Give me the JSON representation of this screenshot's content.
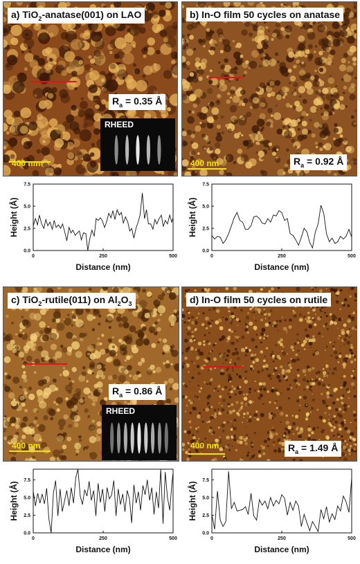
{
  "panels": [
    {
      "id": "a",
      "title_pre": "a) TiO",
      "title_sub": "2",
      "title_post": "-anatase(001) on LAO",
      "ra_pre": "R",
      "ra_sub": "a",
      "ra_post": " = 0.35 Å",
      "scale": "400 nm",
      "rheed": "RHEED",
      "base_color": "#8b4a1c",
      "light_color": "#e8b45a",
      "dark_color": "#3a1806"
    },
    {
      "id": "b",
      "title_pre": "b) In-O film 50 cycles on anatase",
      "title_sub": "",
      "title_post": "",
      "ra_pre": "R",
      "ra_sub": "a",
      "ra_post": " = 0.92 Å",
      "scale": "400 nm",
      "rheed": "",
      "base_color": "#8e5322",
      "light_color": "#f0c46a",
      "dark_color": "#3e1c08"
    },
    {
      "id": "c",
      "title_pre": "c) TiO",
      "title_sub": "2",
      "title_post": "-rutile(011) on Al",
      "title_sub2": "2",
      "title_post2": "O",
      "title_sub3": "3",
      "ra_pre": "R",
      "ra_sub": "a",
      "ra_post": " = 0.86 Å",
      "scale": "400 nm",
      "rheed": "RHEED",
      "base_color": "#a0682a",
      "light_color": "#f2cf7a",
      "dark_color": "#4a2508"
    },
    {
      "id": "d",
      "title_pre": "d) In-O film 50 cycles on rutile",
      "title_sub": "",
      "title_post": "",
      "ra_pre": "R",
      "ra_sub": "a",
      "ra_post": " = 1.49 Å",
      "scale": "400 nm",
      "rheed": "",
      "base_color": "#8a4e1c",
      "light_color": "#f3cc70",
      "dark_color": "#351604"
    }
  ],
  "chart_data": [
    {
      "type": "line",
      "panel": "a",
      "xlabel": "Distance (nm)",
      "ylabel": "Height (Å)",
      "xlim": [
        0,
        500
      ],
      "ylim": [
        0,
        7.5
      ],
      "xticks": [
        "0",
        "250",
        "500"
      ],
      "yticks": [
        "0.0",
        "2.5",
        "5.0",
        "7.5"
      ],
      "x": [
        0,
        8,
        15,
        22,
        30,
        38,
        45,
        52,
        60,
        68,
        75,
        82,
        90,
        98,
        105,
        112,
        120,
        128,
        135,
        142,
        150,
        158,
        165,
        172,
        180,
        188,
        195,
        202,
        210,
        218,
        225,
        232,
        240,
        248,
        255,
        262,
        270,
        278,
        285,
        292,
        300,
        308,
        315,
        322,
        330,
        338,
        345,
        352,
        360,
        368,
        375,
        382,
        390,
        398,
        405,
        412,
        420,
        428,
        435,
        442,
        450,
        458,
        465,
        472,
        480,
        488,
        495,
        500
      ],
      "y": [
        2.8,
        3.6,
        2.9,
        4.0,
        3.0,
        2.5,
        3.5,
        2.8,
        3.2,
        2.4,
        3.4,
        2.6,
        2.9,
        2.5,
        3.0,
        2.2,
        1.1,
        2.6,
        2.0,
        2.3,
        1.7,
        2.0,
        2.2,
        1.2,
        2.0,
        1.9,
        0.0,
        1.3,
        2.3,
        1.6,
        3.6,
        3.4,
        3.7,
        3.3,
        2.6,
        3.2,
        4.2,
        3.7,
        4.5,
        3.5,
        4.6,
        4.0,
        4.3,
        3.1,
        3.8,
        3.2,
        2.2,
        2.5,
        1.4,
        2.6,
        3.2,
        4.0,
        6.5,
        3.6,
        4.6,
        3.0,
        3.0,
        2.4,
        3.5,
        3.0,
        3.6,
        4.0,
        2.7,
        3.4,
        3.0,
        4.0,
        3.2,
        3.7
      ]
    },
    {
      "type": "line",
      "panel": "b",
      "xlabel": "Distance (nm)",
      "ylabel": "Height (Å)",
      "xlim": [
        0,
        500
      ],
      "ylim": [
        0,
        7.5
      ],
      "xticks": [
        "0",
        "250",
        "500"
      ],
      "yticks": [
        "0.0",
        "2.5",
        "5.0",
        "7.5"
      ],
      "x": [
        0,
        10,
        20,
        30,
        40,
        50,
        60,
        70,
        80,
        90,
        100,
        110,
        120,
        130,
        140,
        150,
        160,
        170,
        180,
        190,
        200,
        210,
        220,
        230,
        240,
        250,
        260,
        270,
        280,
        290,
        300,
        310,
        320,
        330,
        340,
        350,
        360,
        370,
        380,
        390,
        400,
        410,
        420,
        430,
        440,
        450,
        460,
        470,
        480,
        490,
        500
      ],
      "y": [
        1.7,
        1.3,
        1.6,
        1.5,
        0.8,
        1.2,
        1.9,
        2.8,
        3.7,
        4.3,
        3.4,
        3.2,
        2.4,
        2.4,
        2.8,
        3.8,
        3.9,
        3.6,
        3.1,
        3.0,
        3.6,
        3.2,
        4.0,
        3.9,
        4.5,
        4.3,
        3.4,
        3.6,
        1.9,
        1.7,
        1.2,
        0.6,
        1.5,
        2.5,
        2.1,
        0.9,
        0.3,
        2.1,
        3.0,
        5.1,
        4.2,
        1.9,
        1.0,
        1.4,
        0.8,
        1.0,
        1.6,
        1.3,
        1.6,
        2.4,
        1.5
      ]
    },
    {
      "type": "line",
      "panel": "c",
      "xlabel": "Distance (nm)",
      "ylabel": "Height (Å)",
      "xlim": [
        0,
        500
      ],
      "ylim": [
        0,
        9
      ],
      "xticks": [
        "0",
        "250",
        "500"
      ],
      "yticks": [
        "0.0",
        "2.5",
        "5.0",
        "7.5"
      ],
      "x": [
        0,
        8,
        16,
        24,
        32,
        40,
        48,
        56,
        64,
        72,
        80,
        88,
        96,
        104,
        112,
        120,
        128,
        136,
        144,
        152,
        160,
        168,
        176,
        184,
        192,
        200,
        208,
        216,
        224,
        232,
        240,
        248,
        256,
        264,
        272,
        280,
        288,
        296,
        304,
        312,
        320,
        328,
        336,
        344,
        352,
        360,
        368,
        376,
        384,
        392,
        400,
        408,
        416,
        424,
        432,
        440,
        448,
        456,
        464,
        472,
        480,
        488,
        496,
        500
      ],
      "y": [
        5.9,
        3.8,
        5.6,
        4.2,
        5.5,
        4.1,
        6.3,
        2.0,
        0.0,
        5.6,
        7.4,
        2.4,
        6.2,
        3.0,
        4.5,
        6.0,
        3.8,
        6.4,
        4.2,
        7.8,
        9.2,
        5.2,
        4.0,
        6.1,
        5.2,
        7.3,
        4.6,
        6.0,
        2.4,
        7.0,
        4.3,
        6.2,
        3.0,
        6.4,
        4.8,
        5.3,
        7.4,
        2.4,
        6.2,
        4.0,
        5.5,
        3.0,
        6.0,
        4.8,
        1.4,
        6.8,
        4.2,
        5.8,
        3.2,
        6.7,
        5.4,
        7.5,
        4.6,
        6.4,
        2.6,
        5.8,
        3.5,
        9.2,
        1.3,
        8.6,
        5.0,
        3.2,
        7.1,
        8.5
      ]
    },
    {
      "type": "line",
      "panel": "d",
      "xlabel": "Distance (nm)",
      "ylabel": "Height (Å)",
      "xlim": [
        0,
        500
      ],
      "ylim": [
        0,
        9
      ],
      "xticks": [
        "0",
        "250",
        "500"
      ],
      "yticks": [
        "0.0",
        "2.5",
        "5.0",
        "7.5"
      ],
      "x": [
        0,
        10,
        20,
        30,
        40,
        50,
        60,
        70,
        80,
        90,
        100,
        110,
        120,
        130,
        140,
        150,
        160,
        170,
        180,
        190,
        200,
        210,
        220,
        230,
        240,
        250,
        260,
        270,
        280,
        290,
        300,
        310,
        320,
        330,
        340,
        350,
        360,
        370,
        380,
        390,
        400,
        410,
        420,
        430,
        440,
        450,
        460,
        470,
        480,
        490,
        500
      ],
      "y": [
        2.6,
        0.5,
        5.9,
        1.8,
        0.9,
        1.6,
        8.7,
        3.4,
        4.3,
        3.1,
        3.2,
        3.3,
        3.7,
        2.6,
        5.6,
        2.4,
        1.8,
        4.7,
        3.9,
        4.5,
        3.4,
        5.0,
        3.8,
        4.6,
        4.1,
        5.4,
        4.9,
        2.5,
        4.3,
        3.2,
        4.5,
        3.8,
        0.9,
        2.6,
        1.4,
        0.3,
        1.6,
        0.9,
        0.2,
        3.3,
        2.0,
        3.7,
        1.5,
        2.7,
        1.9,
        3.8,
        3.1,
        5.2,
        4.4,
        2.9,
        7.8
      ]
    }
  ]
}
